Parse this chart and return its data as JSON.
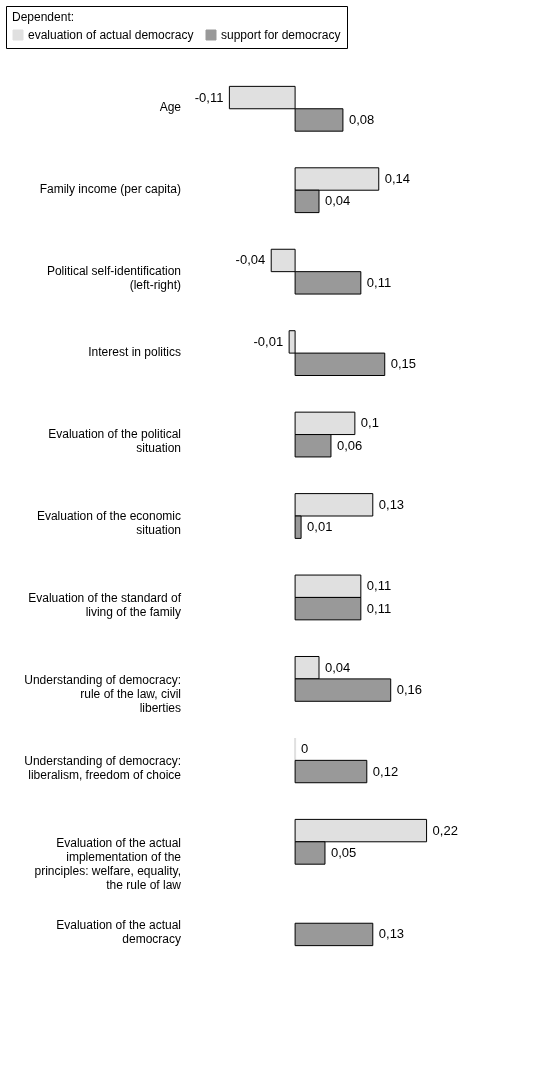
{
  "chart_data": {
    "type": "bar",
    "orientation": "horizontal",
    "legend": "top",
    "legend_title": "Dependent:",
    "categories": [
      "Age",
      "Family income (per capita)",
      "Political self-identification (left-right)",
      "Interest in politics",
      "Evaluation of the political situation",
      "Evaluation of the economic situation",
      "Evaluation of the standard of living of the family",
      "Understanding of democracy: rule of the law, civil liberties",
      "Understanding of democracy: liberalism, freedom of choice",
      "Evaluation of the actual implementation of the principles: welfare, equality, the rule of law",
      "Evaluation of the actual democracy"
    ],
    "series": [
      {
        "name": "evaluation of actual democracy",
        "color": "#e0e0e0",
        "values": [
          -0.11,
          0.14,
          -0.04,
          -0.01,
          0.1,
          0.13,
          0.11,
          0.04,
          0,
          0.22,
          null
        ],
        "value_labels": [
          "-0,11",
          "0,14",
          "-0,04",
          "-0,01",
          "0,1",
          "0,13",
          "0,11",
          "0,04",
          "0",
          "0,22",
          null
        ]
      },
      {
        "name": "support for democracy",
        "color": "#999999",
        "values": [
          0.08,
          0.04,
          0.11,
          0.15,
          0.06,
          0.01,
          0.11,
          0.16,
          0.12,
          0.05,
          0.13
        ],
        "value_labels": [
          "0,08",
          "0,04",
          "0,11",
          "0,15",
          "0,06",
          "0,01",
          "0,11",
          "0,16",
          "0,12",
          "0,05",
          "0,13"
        ]
      }
    ]
  }
}
